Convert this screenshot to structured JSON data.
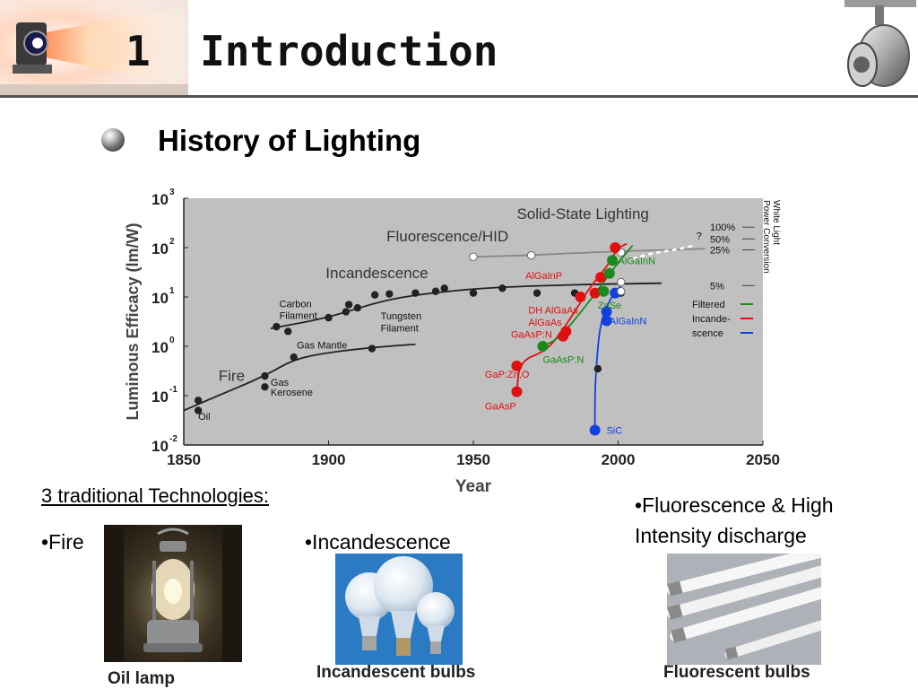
{
  "slide": {
    "number": "1",
    "title": "Introduction",
    "subtitle": "History of Lighting"
  },
  "technologies": {
    "heading": "3 traditional Technologies:",
    "fire": "•Fire",
    "incandescence": "•Incandescence",
    "fluorescence": "•Fluorescence & High Intensity discharge"
  },
  "captions": {
    "lamp": "Oil lamp",
    "bulbs": "Incandescent bulbs",
    "tubes": "Fluorescent bulbs"
  },
  "icons": {
    "projector": "projector-light-icon",
    "spotlight": "spotlight-icon",
    "bullet": "sphere-bullet-icon"
  },
  "colors": {
    "plot_bg": "#c0c0c0",
    "incandescence_curve": "#222222",
    "red_led": "#e01010",
    "green_led": "#1a8a1a",
    "blue_led": "#1040e0",
    "white_led": "#ffffff",
    "fluorescent": "#888888"
  },
  "chart_data": {
    "type": "scatter",
    "title": "",
    "xlabel": "Year",
    "ylabel": "Luminous Efficacy (lm/W)",
    "xlim": [
      1850,
      2050
    ],
    "ylim": [
      0.01,
      1000
    ],
    "yscale": "log",
    "grid": false,
    "x_ticks": [
      "1850",
      "1900",
      "1950",
      "2000",
      "2050"
    ],
    "y_ticks": [
      {
        "base": "10",
        "exp": "-2",
        "value": 0.01
      },
      {
        "base": "10",
        "exp": "-1",
        "value": 0.1
      },
      {
        "base": "10",
        "exp": "0",
        "value": 1
      },
      {
        "base": "10",
        "exp": "1",
        "value": 10
      },
      {
        "base": "10",
        "exp": "2",
        "value": 100
      },
      {
        "base": "10",
        "exp": "3",
        "value": 1000
      }
    ],
    "regions": [
      "Fire",
      "Incandescence",
      "Fluorescence/HID",
      "Solid-State Lighting"
    ],
    "series": [
      {
        "color_key": "incandescence_curve",
        "style": "curve",
        "points": [
          [
            1850,
            0.05
          ],
          [
            1860,
            0.09
          ],
          [
            1878,
            0.25
          ],
          [
            1888,
            0.55
          ],
          [
            1900,
            0.75
          ],
          [
            1915,
            0.95
          ],
          [
            1930,
            1.1
          ]
        ]
      },
      {
        "color_key": "incandescence_curve",
        "style": "curve",
        "points": [
          [
            1880,
            2.3
          ],
          [
            1900,
            3.8
          ],
          [
            1920,
            9
          ],
          [
            1940,
            13
          ],
          [
            1960,
            16
          ],
          [
            1990,
            18
          ],
          [
            2015,
            19
          ]
        ]
      },
      {
        "color_key": "fluorescent",
        "style": "curve",
        "points": [
          [
            1950,
            65
          ],
          [
            1970,
            70
          ],
          [
            1990,
            80
          ],
          [
            2030,
            95
          ]
        ]
      },
      {
        "color_key": "red_led",
        "style": "curve",
        "points": [
          [
            1965,
            0.12
          ],
          [
            1966,
            0.5
          ],
          [
            1975,
            0.8
          ],
          [
            1980,
            1.8
          ],
          [
            1985,
            5
          ],
          [
            1990,
            15
          ],
          [
            1996,
            40
          ],
          [
            2000,
            100
          ],
          [
            2003,
            120
          ]
        ]
      },
      {
        "color_key": "green_led",
        "style": "curve",
        "points": [
          [
            1974,
            1
          ],
          [
            1980,
            1.5
          ],
          [
            1990,
            8
          ],
          [
            1995,
            20
          ],
          [
            2000,
            50
          ],
          [
            2005,
            110
          ]
        ]
      },
      {
        "color_key": "blue_led",
        "style": "curve",
        "points": [
          [
            1992,
            0.02
          ],
          [
            1992,
            0.15
          ],
          [
            1993,
            1
          ],
          [
            1994,
            3
          ],
          [
            1997,
            9
          ],
          [
            2002,
            20
          ]
        ]
      },
      {
        "color_key": "white_led",
        "style": "dashed",
        "points": [
          [
            2005,
            60
          ],
          [
            2013,
            80
          ],
          [
            2020,
            90
          ],
          [
            2026,
            110
          ]
        ]
      }
    ],
    "markers": [
      {
        "x": 1855,
        "y": 0.08,
        "color_key": "incandescence_curve"
      },
      {
        "x": 1855,
        "y": 0.05,
        "color_key": "incandescence_curve"
      },
      {
        "x": 1878,
        "y": 0.25,
        "color_key": "incandescence_curve"
      },
      {
        "x": 1878,
        "y": 0.15,
        "color_key": "incandescence_curve"
      },
      {
        "x": 1888,
        "y": 0.6,
        "color_key": "incandescence_curve"
      },
      {
        "x": 1915,
        "y": 0.9,
        "color_key": "incandescence_curve"
      },
      {
        "x": 1882,
        "y": 2.5,
        "color_key": "incandescence_curve"
      },
      {
        "x": 1886,
        "y": 2.0,
        "color_key": "incandescence_curve"
      },
      {
        "x": 1900,
        "y": 3.8,
        "color_key": "incandescence_curve"
      },
      {
        "x": 1906,
        "y": 5,
        "color_key": "incandescence_curve"
      },
      {
        "x": 1907,
        "y": 7,
        "color_key": "incandescence_curve"
      },
      {
        "x": 1910,
        "y": 6,
        "color_key": "incandescence_curve"
      },
      {
        "x": 1916,
        "y": 11,
        "color_key": "incandescence_curve"
      },
      {
        "x": 1921,
        "y": 11.5,
        "color_key": "incandescence_curve"
      },
      {
        "x": 1930,
        "y": 12,
        "color_key": "incandescence_curve"
      },
      {
        "x": 1937,
        "y": 13,
        "color_key": "incandescence_curve"
      },
      {
        "x": 1940,
        "y": 15,
        "color_key": "incandescence_curve"
      },
      {
        "x": 1950,
        "y": 12,
        "color_key": "incandescence_curve"
      },
      {
        "x": 1960,
        "y": 15,
        "color_key": "incandescence_curve"
      },
      {
        "x": 1972,
        "y": 12,
        "color_key": "incandescence_curve"
      },
      {
        "x": 1985,
        "y": 12,
        "color_key": "incandescence_curve"
      },
      {
        "x": 1994,
        "y": 13,
        "color_key": "incandescence_curve"
      },
      {
        "x": 2001,
        "y": 12,
        "color_key": "incandescence_curve"
      },
      {
        "x": 1950,
        "y": 65,
        "color_key": "fluorescent",
        "hollow": true
      },
      {
        "x": 1970,
        "y": 70,
        "color_key": "fluorescent",
        "hollow": true
      },
      {
        "x": 2001,
        "y": 80,
        "color_key": "fluorescent",
        "hollow": true
      },
      {
        "x": 1965,
        "y": 0.12,
        "color_key": "red_led",
        "big": true
      },
      {
        "x": 1965,
        "y": 0.4,
        "color_key": "red_led",
        "big": true
      },
      {
        "x": 1981,
        "y": 1.6,
        "color_key": "red_led",
        "big": true
      },
      {
        "x": 1982,
        "y": 2.0,
        "color_key": "red_led",
        "big": true
      },
      {
        "x": 1987,
        "y": 10,
        "color_key": "red_led",
        "big": true
      },
      {
        "x": 1992,
        "y": 12,
        "color_key": "red_led",
        "big": true
      },
      {
        "x": 1994,
        "y": 25,
        "color_key": "red_led",
        "big": true
      },
      {
        "x": 1999,
        "y": 100,
        "color_key": "red_led",
        "big": true
      },
      {
        "x": 1974,
        "y": 1.0,
        "color_key": "green_led",
        "big": true
      },
      {
        "x": 1995,
        "y": 13,
        "color_key": "green_led",
        "big": true
      },
      {
        "x": 1997,
        "y": 30,
        "color_key": "green_led",
        "big": true
      },
      {
        "x": 1998,
        "y": 55,
        "color_key": "green_led",
        "big": true
      },
      {
        "x": 1992,
        "y": 0.02,
        "color_key": "blue_led",
        "big": true
      },
      {
        "x": 1996,
        "y": 3.3,
        "color_key": "blue_led",
        "big": true
      },
      {
        "x": 1996,
        "y": 5,
        "color_key": "blue_led",
        "big": true
      },
      {
        "x": 1999,
        "y": 12,
        "color_key": "blue_led",
        "big": true
      },
      {
        "x": 1993,
        "y": 0.35,
        "color_key": "incandescence_curve"
      },
      {
        "x": 2001,
        "y": 20,
        "color_key": "white_led",
        "hollow": true
      },
      {
        "x": 2001,
        "y": 13,
        "color_key": "white_led",
        "hollow": true
      }
    ],
    "annotations": [
      {
        "text": "Oil",
        "x": 1855,
        "y": 0.032
      },
      {
        "text": "Fire",
        "x": 1862,
        "y": 0.2,
        "size": "large"
      },
      {
        "text": "Gas",
        "x": 1880,
        "y": 0.16
      },
      {
        "text": "Kerosene",
        "x": 1880,
        "y": 0.1
      },
      {
        "text": "Gas Mantle",
        "x": 1889,
        "y": 0.9
      },
      {
        "text": "Carbon",
        "x": 1883,
        "y": 6.2
      },
      {
        "text": "Filament",
        "x": 1883,
        "y": 3.6
      },
      {
        "text": "Incandescence",
        "x": 1899,
        "y": 24,
        "size": "large"
      },
      {
        "text": "Tungsten",
        "x": 1918,
        "y": 3.5
      },
      {
        "text": "Filament",
        "x": 1918,
        "y": 2.0
      },
      {
        "text": "Fluorescence/HID",
        "x": 1920,
        "y": 135,
        "size": "large"
      },
      {
        "text": "Solid-State Lighting",
        "x": 1965,
        "y": 380,
        "size": "large"
      },
      {
        "text": "AlGaInP",
        "x": 1968,
        "y": 23,
        "color_key": "red_led"
      },
      {
        "text": "DH AlGaAs",
        "x": 1969,
        "y": 4.6,
        "color_key": "red_led"
      },
      {
        "text": "AlGaAs",
        "x": 1969,
        "y": 2.6,
        "color_key": "red_led"
      },
      {
        "text": "GaAsP:N",
        "x": 1963,
        "y": 1.5,
        "color_key": "red_led"
      },
      {
        "text": "GaP:Zn,O",
        "x": 1954,
        "y": 0.23,
        "color_key": "red_led"
      },
      {
        "text": "GaAsP",
        "x": 1954,
        "y": 0.052,
        "color_key": "red_led"
      },
      {
        "text": "AlGaInN",
        "x": 2000,
        "y": 46,
        "color_key": "green_led"
      },
      {
        "text": "ZnSe",
        "x": 1993,
        "y": 5.8,
        "color_key": "green_led"
      },
      {
        "text": "GaAsP:N",
        "x": 1974,
        "y": 0.46,
        "color_key": "green_led"
      },
      {
        "text": "AlGaInN",
        "x": 1997,
        "y": 2.8,
        "color_key": "blue_led"
      },
      {
        "text": "SiC",
        "x": 1996,
        "y": 0.017,
        "color_key": "blue_led"
      },
      {
        "text": "?",
        "x": 2027,
        "y": 150
      }
    ],
    "side_legend": {
      "rotated_title": [
        "White Light",
        "Power Conversion"
      ],
      "percentages": [
        {
          "label": "100%",
          "y": 260
        },
        {
          "label": "50%",
          "y": 150
        },
        {
          "label": "25%",
          "y": 90
        },
        {
          "label": "5%",
          "y": 17
        }
      ],
      "entries": [
        {
          "label": "Filtered",
          "color_key": "green_led"
        },
        {
          "label": "Incande-",
          "color_key": "red_led"
        },
        {
          "label": "scence",
          "color_key": "blue_led"
        }
      ]
    }
  }
}
